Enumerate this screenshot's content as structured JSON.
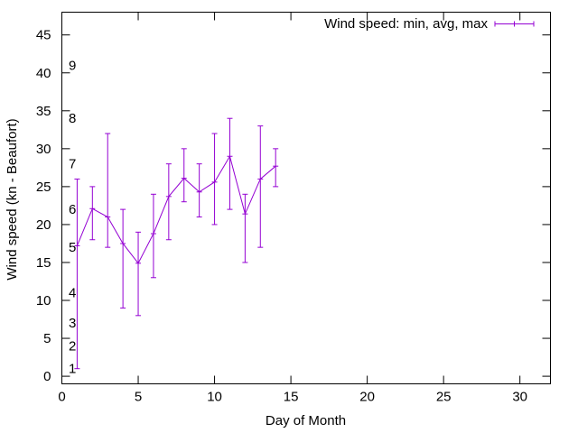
{
  "chart_data": {
    "type": "line",
    "xlabel": "Day of Month",
    "ylabel": "Wind speed (kn - Beaufort)",
    "xlim": [
      0,
      32
    ],
    "ylim": [
      -1,
      48
    ],
    "x_ticks": [
      0,
      5,
      10,
      15,
      20,
      25,
      30
    ],
    "y_ticks": [
      0,
      5,
      10,
      15,
      20,
      25,
      30,
      35,
      40,
      45
    ],
    "grid": false,
    "legend": "top-right",
    "series": [
      {
        "name": "Wind speed: min, avg, max",
        "color": "#9400d3",
        "style": "line with error bars",
        "x": [
          1,
          2,
          3,
          4,
          5,
          6,
          7,
          8,
          9,
          10,
          11,
          12,
          13,
          14
        ],
        "min": [
          1,
          18,
          17,
          9,
          8,
          13,
          18,
          23,
          21,
          20,
          22,
          15,
          17,
          25
        ],
        "avg": [
          17.2,
          22.1,
          21,
          17.5,
          14.9,
          18.8,
          23.7,
          26.1,
          24.3,
          25.6,
          29,
          21.4,
          26,
          27.7
        ],
        "max": [
          26,
          25,
          32,
          22,
          19,
          24,
          28,
          30,
          28,
          32,
          34,
          24,
          33,
          30
        ]
      }
    ],
    "annotations": [
      {
        "text": "1",
        "y": 1
      },
      {
        "text": "2",
        "y": 4
      },
      {
        "text": "3",
        "y": 7
      },
      {
        "text": "4",
        "y": 11
      },
      {
        "text": "5",
        "y": 17
      },
      {
        "text": "6",
        "y": 22
      },
      {
        "text": "7",
        "y": 28
      },
      {
        "text": "8",
        "y": 34
      },
      {
        "text": "9",
        "y": 41
      }
    ]
  }
}
